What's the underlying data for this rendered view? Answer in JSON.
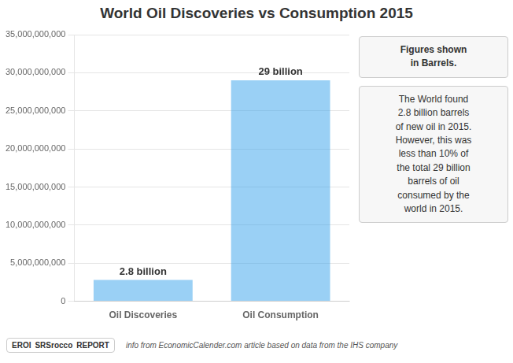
{
  "chart_data": {
    "type": "bar",
    "title": "World Oil Discoveries vs Consumption 2015",
    "categories": [
      "Oil Discoveries",
      "Oil Consumption"
    ],
    "values": [
      2800000000,
      29000000000
    ],
    "value_labels": [
      "2.8 billion",
      "29 billion"
    ],
    "data_labels": true,
    "ylim": [
      0,
      35000000000
    ],
    "yticks": [
      0,
      {
        "value": 5000000000,
        "label": "5,000,000,000"
      },
      {
        "value": 10000000000,
        "label": "10,000,000,000"
      },
      {
        "value": 15000000000,
        "label": "15,000,000,000"
      },
      {
        "value": 20000000000,
        "label": "20,000,000,000"
      },
      {
        "value": 25000000000,
        "label": "25,000,000,000"
      },
      {
        "value": 30000000000,
        "label": "30,000,000,000"
      },
      {
        "value": 35000000000,
        "label": "35,000,000,000"
      }
    ],
    "grid": true,
    "annotations": [
      "Figures shown\nin Barrels.",
      "The World found\n2.8 billion barrels\nof new oil in 2015.\nHowever, this was\nless than 10% of\nthe total 29 billion\nbarrels of oil\nconsumed by the\nworld in 2015.",
      "info from EconomicCalender.com article based on data from the IHS company",
      "EROI",
      "SRSrocco",
      "REPORT"
    ]
  }
}
